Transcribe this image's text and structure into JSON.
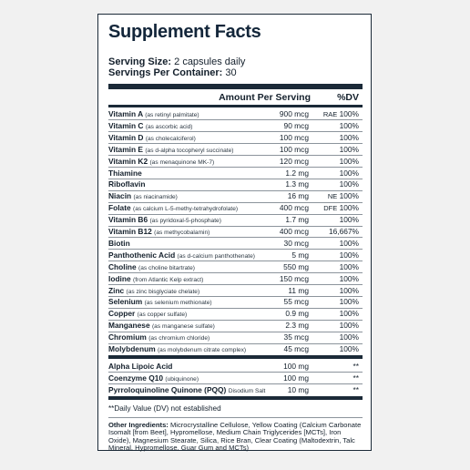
{
  "title": "Supplement Facts",
  "serving_size_label": "Serving Size:",
  "serving_size_value": "2 capsules daily",
  "servings_per_container_label": "Servings Per Container:",
  "servings_per_container_value": "30",
  "header": {
    "amount": "Amount Per Serving",
    "dv": "%DV"
  },
  "nutrients": [
    {
      "name": "Vitamin A",
      "note": "(as retinyl palmitate)",
      "amount": "900 mcg",
      "prefix": "RAE",
      "dv": "100%"
    },
    {
      "name": "Vitamin C",
      "note": "(as ascorbic acid)",
      "amount": "90 mcg",
      "prefix": "",
      "dv": "100%"
    },
    {
      "name": "Vitamin D",
      "note": "(as cholecalciferol)",
      "amount": "100 mcg",
      "prefix": "",
      "dv": "100%"
    },
    {
      "name": "Vitamin E",
      "note": "(as d-alpha tocopheryl succinate)",
      "amount": "100 mcg",
      "prefix": "",
      "dv": "100%"
    },
    {
      "name": "Vitamin K2",
      "note": "(as menaquinone MK-7)",
      "amount": "120 mcg",
      "prefix": "",
      "dv": "100%"
    },
    {
      "name": "Thiamine",
      "note": "",
      "amount": "1.2 mg",
      "prefix": "",
      "dv": "100%"
    },
    {
      "name": "Riboflavin",
      "note": "",
      "amount": "1.3 mg",
      "prefix": "",
      "dv": "100%"
    },
    {
      "name": "Niacin",
      "note": "(as niacinamide)",
      "amount": "16 mg",
      "prefix": "NE",
      "dv": "100%"
    },
    {
      "name": "Folate",
      "note": "(as calcium L-5-methy-tetrahydrofolate)",
      "amount": "400 mcg",
      "prefix": "DFE",
      "dv": "100%"
    },
    {
      "name": "Vitamin B6",
      "note": "(as pyridoxal-5-phosphate)",
      "amount": "1.7 mg",
      "prefix": "",
      "dv": "100%"
    },
    {
      "name": "Vitamin B12",
      "note": "(as methycobalamin)",
      "amount": "400 mcg",
      "prefix": "",
      "dv": "16,667%"
    },
    {
      "name": "Biotin",
      "note": "",
      "amount": "30 mcg",
      "prefix": "",
      "dv": "100%"
    },
    {
      "name": "Panthothenic Acid",
      "note": "(as d-calcium panthothenate)",
      "amount": "5 mg",
      "prefix": "",
      "dv": "100%"
    },
    {
      "name": "Choline",
      "note": "(as choline bitartrate)",
      "amount": "550 mg",
      "prefix": "",
      "dv": "100%"
    },
    {
      "name": "Iodine",
      "note": "(from Atlantic Kelp extract)",
      "amount": "150 mcg",
      "prefix": "",
      "dv": "100%"
    },
    {
      "name": "Zinc",
      "note": "(as zinc bisglyciate chelate)",
      "amount": "11 mg",
      "prefix": "",
      "dv": "100%"
    },
    {
      "name": "Selenium",
      "note": "(as selenium methionate)",
      "amount": "55 mcg",
      "prefix": "",
      "dv": "100%"
    },
    {
      "name": "Copper",
      "note": "(as copper sulfate)",
      "amount": "0.9 mg",
      "prefix": "",
      "dv": "100%"
    },
    {
      "name": "Manganese",
      "note": "(as manganese sulfate)",
      "amount": "2.3 mg",
      "prefix": "",
      "dv": "100%"
    },
    {
      "name": "Chromium",
      "note": "(as chromium chloride)",
      "amount": "35 mcg",
      "prefix": "",
      "dv": "100%"
    },
    {
      "name": "Molybdenum",
      "note": "(as molybdenum citrate complex)",
      "amount": "45 mcg",
      "prefix": "",
      "dv": "100%"
    }
  ],
  "other_nutrients": [
    {
      "name": "Alpha Lipoic Acid",
      "note": "",
      "amount": "100 mg",
      "prefix": "",
      "dv": "**"
    },
    {
      "name": "Coenzyme Q10",
      "note": "(ubiquinone)",
      "amount": "100 mg",
      "prefix": "",
      "dv": "**"
    },
    {
      "name": "Pyrroloquinoline Quinone (PQQ)",
      "note": "Disodium Salt",
      "amount": "10 mg",
      "prefix": "",
      "dv": "**"
    }
  ],
  "footnote": "**Daily Value (DV) not established",
  "other_ingredients_label": "Other Ingredients:",
  "other_ingredients_text": "Microcrystalline Cellulose, Yellow Coating (Calcium Carbonate Isomalt [from Beet], Hypromellose, Medium Chain Triglycerides [MCTs], Iron Oxide), Magnesium Stearate, Silica, Rice Bran, Clear Coating (Maltodextrin, Talc Mineral, Hypromellose, Guar Gum and MCTs)",
  "colors": {
    "ink": "#1b2a38",
    "background": "#f1f1f1",
    "panel": "#ffffff"
  }
}
